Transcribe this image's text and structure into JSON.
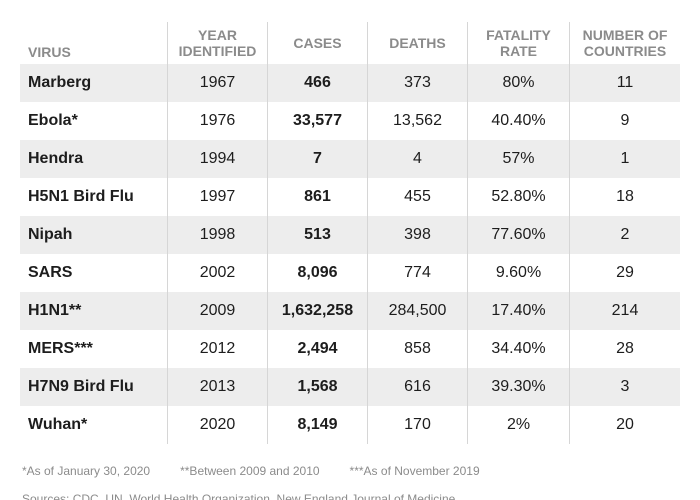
{
  "header": {
    "virus": "VIRUS",
    "year": "YEAR IDENTIFIED",
    "cases": "CASES",
    "deaths": "DEATHS",
    "fatality": "FATALITY RATE",
    "countries": "NUMBER OF COUNTRIES"
  },
  "rows": [
    {
      "virus": "Marberg",
      "year": "1967",
      "cases": "466",
      "deaths": "373",
      "fatality": "80%",
      "countries": "11"
    },
    {
      "virus": "Ebola*",
      "year": "1976",
      "cases": "33,577",
      "deaths": "13,562",
      "fatality": "40.40%",
      "countries": "9"
    },
    {
      "virus": "Hendra",
      "year": "1994",
      "cases": "7",
      "deaths": "4",
      "fatality": "57%",
      "countries": "1"
    },
    {
      "virus": "H5N1 Bird Flu",
      "year": "1997",
      "cases": "861",
      "deaths": "455",
      "fatality": "52.80%",
      "countries": "18"
    },
    {
      "virus": "Nipah",
      "year": "1998",
      "cases": "513",
      "deaths": "398",
      "fatality": "77.60%",
      "countries": "2"
    },
    {
      "virus": "SARS",
      "year": "2002",
      "cases": "8,096",
      "deaths": "774",
      "fatality": "9.60%",
      "countries": "29"
    },
    {
      "virus": "H1N1**",
      "year": "2009",
      "cases": "1,632,258",
      "deaths": "284,500",
      "fatality": "17.40%",
      "countries": "214"
    },
    {
      "virus": "MERS***",
      "year": "2012",
      "cases": "2,494",
      "deaths": "858",
      "fatality": "34.40%",
      "countries": "28"
    },
    {
      "virus": "H7N9 Bird Flu",
      "year": "2013",
      "cases": "1,568",
      "deaths": "616",
      "fatality": "39.30%",
      "countries": "3"
    },
    {
      "virus": "Wuhan*",
      "year": "2020",
      "cases": "8,149",
      "deaths": "170",
      "fatality": "2%",
      "countries": "20"
    }
  ],
  "footnotes": {
    "note1": "*As of January 30, 2020",
    "note2": "**Between 2009 and 2010",
    "note3": "***As of November 2019"
  },
  "source": "Sources: CDC, UN, World Health Organization, New England Journal of Medicine",
  "colors": {
    "row_shade": "#ededed",
    "header_text": "#8b8b8b",
    "body_text": "#1d1d1d"
  }
}
